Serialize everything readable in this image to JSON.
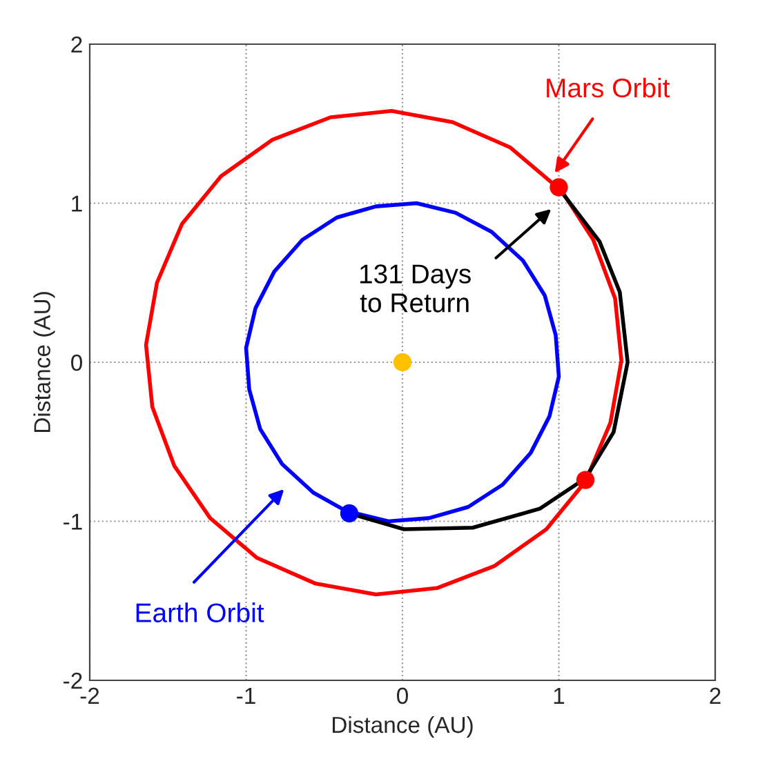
{
  "chart_data": {
    "type": "line",
    "xlabel": "Distance (AU)",
    "ylabel": "Distance (AU)",
    "xlim": [
      -2,
      2
    ],
    "ylim": [
      -2,
      2
    ],
    "xticks": [
      -2,
      -1,
      0,
      1,
      2
    ],
    "yticks": [
      -2,
      -1,
      0,
      1,
      2
    ],
    "grid": true,
    "line_style": "solid",
    "series": [
      {
        "type": "line",
        "color": "#ff0000",
        "x": [
          0.99,
          0.69,
          0.32,
          -0.07,
          -0.46,
          -0.83,
          -1.16,
          -1.41,
          -1.57,
          -1.64,
          -1.6,
          -1.46,
          -1.23,
          -0.93,
          -0.56,
          -0.17,
          0.22,
          0.59,
          0.92,
          1.17,
          1.33,
          1.4,
          1.36,
          1.22,
          1.03
        ],
        "values": [
          1.1,
          1.35,
          1.51,
          1.58,
          1.54,
          1.4,
          1.17,
          0.87,
          0.5,
          0.11,
          -0.28,
          -0.65,
          -0.98,
          -1.23,
          -1.39,
          -1.46,
          -1.42,
          -1.28,
          -1.05,
          -0.75,
          -0.38,
          0.01,
          0.4,
          0.77,
          1.06
        ]
      },
      {
        "type": "line",
        "color": "#0000ff",
        "x": [
          -0.34,
          -0.09,
          0.17,
          0.42,
          0.64,
          0.82,
          0.94,
          1.0,
          0.98,
          0.91,
          0.77,
          0.57,
          0.34,
          0.09,
          -0.17,
          -0.42,
          -0.64,
          -0.82,
          -0.94,
          -1.0,
          -0.98,
          -0.91,
          -0.77,
          -0.57,
          -0.37
        ],
        "values": [
          -0.94,
          -1.0,
          -0.98,
          -0.91,
          -0.77,
          -0.57,
          -0.34,
          -0.09,
          0.17,
          0.42,
          0.64,
          0.82,
          0.94,
          1.0,
          0.98,
          0.91,
          0.77,
          0.57,
          0.34,
          0.09,
          -0.17,
          -0.42,
          -0.64,
          -0.82,
          -0.93
        ]
      },
      {
        "type": "line",
        "color": "#000000",
        "x": [
          -0.34,
          0.01,
          0.45,
          0.88,
          1.17,
          1.35,
          1.44,
          1.39,
          1.26,
          1.01
        ],
        "values": [
          -0.95,
          -1.05,
          -1.04,
          -0.92,
          -0.73,
          -0.44,
          0,
          0.44,
          0.76,
          1.08
        ]
      },
      {
        "type": "scatter",
        "marker": "circle",
        "color": "#ffc000",
        "x": [
          0
        ],
        "values": [
          0
        ]
      },
      {
        "type": "scatter",
        "marker": "circle",
        "color": "#0000ff",
        "x": [
          -0.34
        ],
        "values": [
          -0.95
        ]
      },
      {
        "type": "scatter",
        "marker": "circle",
        "color": "#ff0000",
        "x": [
          1.0,
          1.17
        ],
        "values": [
          1.1,
          -0.74
        ]
      }
    ],
    "annotations": [
      "Mars Orbit",
      "131 Days\nto Return",
      "Earth Orbit"
    ]
  }
}
